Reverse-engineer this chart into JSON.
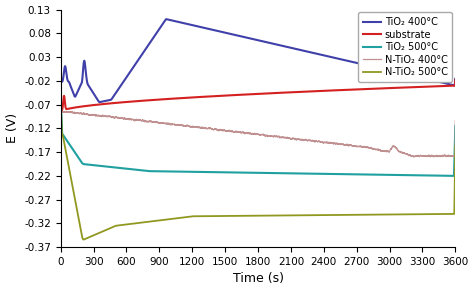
{
  "title": "",
  "xlabel": "Time (s)",
  "ylabel": "E (V)",
  "xlim": [
    0,
    3600
  ],
  "ylim": [
    -0.37,
    0.13
  ],
  "yticks": [
    0.13,
    0.08,
    0.03,
    -0.02,
    -0.07,
    -0.12,
    -0.17,
    -0.22,
    -0.27,
    -0.32,
    -0.37
  ],
  "xticks": [
    0,
    300,
    600,
    900,
    1200,
    1500,
    1800,
    2100,
    2400,
    2700,
    3000,
    3300,
    3600
  ],
  "legend_labels": [
    "substrate",
    "TiO₂ 400°C",
    "TiO₂ 500°C",
    "N-TiO₂ 400°C",
    "N-TiO₂ 500°C"
  ],
  "colors": {
    "substrate": "#d42020",
    "tio2_400": "#4040aa",
    "tio2_500": "#20a0a0",
    "n_tio2_400": "#c09090",
    "n_tio2_500": "#909820"
  },
  "linewidths": {
    "substrate": 1.5,
    "tio2_400": 1.5,
    "tio2_500": 1.5,
    "n_tio2_400": 0.9,
    "n_tio2_500": 1.3
  }
}
